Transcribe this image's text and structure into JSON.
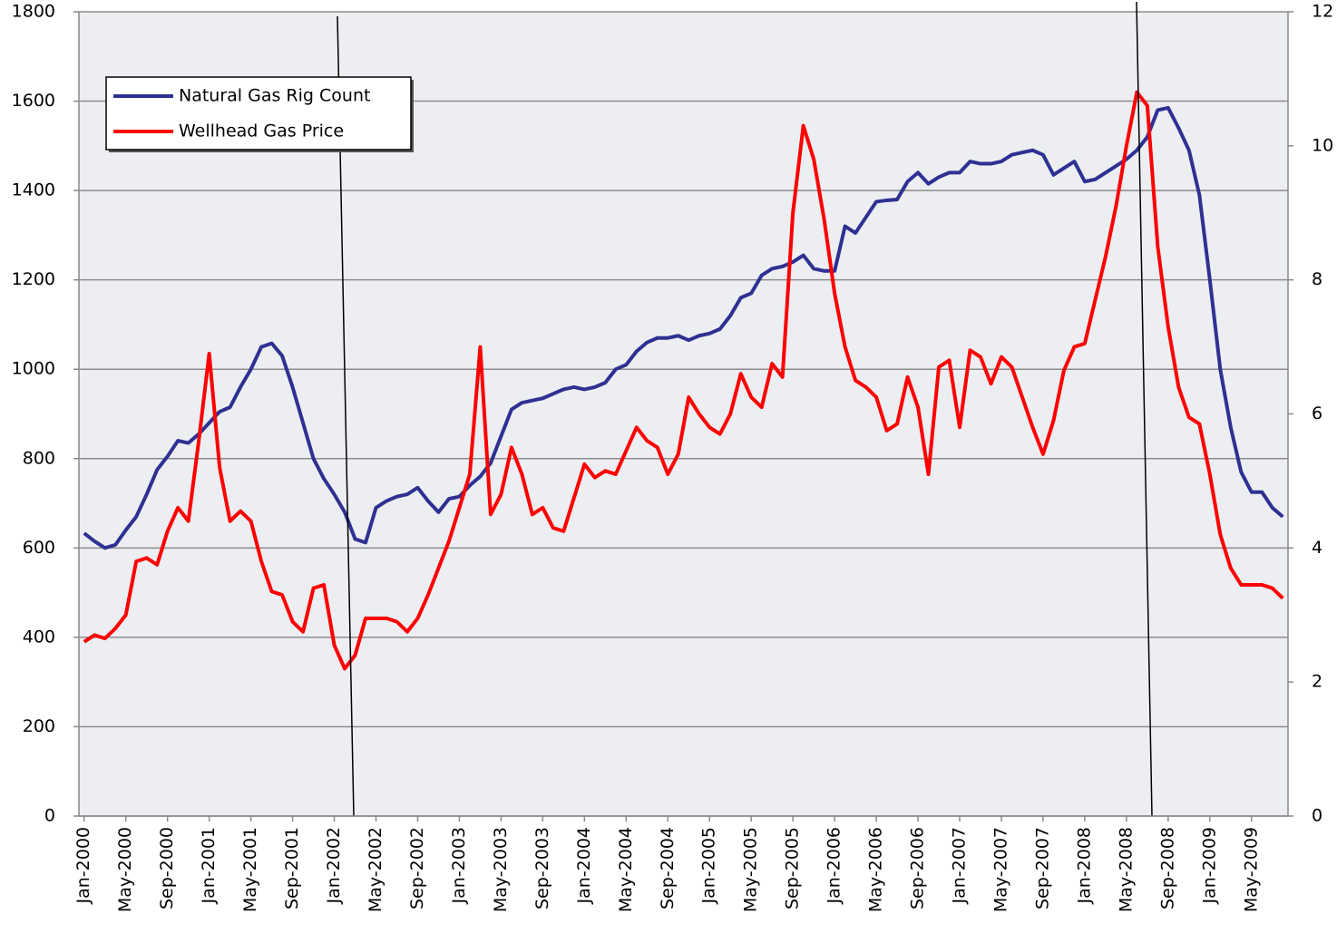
{
  "chart_data": {
    "type": "line",
    "categories": [
      "Jan-2000",
      null,
      null,
      null,
      "May-2000",
      null,
      null,
      null,
      "Sep-2000",
      null,
      null,
      null,
      "Jan-2001",
      null,
      null,
      null,
      "May-2001",
      null,
      null,
      null,
      "Sep-2001",
      null,
      null,
      null,
      "Jan-2002",
      null,
      null,
      null,
      "May-2002",
      null,
      null,
      null,
      "Sep-2002",
      null,
      null,
      null,
      "Jan-2003",
      null,
      null,
      null,
      "May-2003",
      null,
      null,
      null,
      "Sep-2003",
      null,
      null,
      null,
      "Jan-2004",
      null,
      null,
      null,
      "May-2004",
      null,
      null,
      null,
      "Sep-2004",
      null,
      null,
      null,
      "Jan-2005",
      null,
      null,
      null,
      "May-2005",
      null,
      null,
      null,
      "Sep-2005",
      null,
      null,
      null,
      "Jan-2006",
      null,
      null,
      null,
      "May-2006",
      null,
      null,
      null,
      "Sep-2006",
      null,
      null,
      null,
      "Jan-2007",
      null,
      null,
      null,
      "May-2007",
      null,
      null,
      null,
      "Sep-2007",
      null,
      null,
      null,
      "Jan-2008",
      null,
      null,
      null,
      "May-2008",
      null,
      null,
      null,
      "Sep-2008",
      null,
      null,
      null,
      "Jan-2009",
      null,
      null,
      null,
      "May-2009",
      null,
      null,
      null
    ],
    "series": [
      {
        "name": "Natural Gas Rig Count",
        "color": "#2e3192",
        "values": [
          633,
          615,
          600,
          607,
          640,
          670,
          720,
          775,
          805,
          840,
          835,
          855,
          880,
          905,
          915,
          960,
          1000,
          1050,
          1058,
          1030,
          960,
          880,
          800,
          755,
          720,
          680,
          620,
          612,
          690,
          705,
          715,
          720,
          735,
          705,
          680,
          710,
          715,
          740,
          760,
          790,
          850,
          910,
          925,
          930,
          935,
          945,
          955,
          960,
          955,
          960,
          970,
          1000,
          1010,
          1040,
          1060,
          1070,
          1070,
          1075,
          1065,
          1075,
          1080,
          1090,
          1120,
          1160,
          1170,
          1210,
          1225,
          1230,
          1240,
          1255,
          1225,
          1220,
          1220,
          1320,
          1305,
          1340,
          1375,
          1378,
          1380,
          1420,
          1440,
          1415,
          1430,
          1440,
          1440,
          1465,
          1460,
          1460,
          1465,
          1480,
          1485,
          1490,
          1480,
          1435,
          1450,
          1465,
          1420,
          1425,
          1440,
          1455,
          1470,
          1490,
          1520,
          1580,
          1585,
          1540,
          1490,
          1390,
          1200,
          1000,
          870,
          770,
          725,
          725,
          690,
          670
        ]
      },
      {
        "name": "Wellhead Gas Price",
        "color": "#ff0000",
        "axis": "y2",
        "values": [
          2.6,
          2.7,
          2.65,
          2.8,
          3.0,
          3.8,
          3.85,
          3.75,
          4.25,
          4.6,
          4.4,
          5.6,
          6.9,
          5.2,
          4.4,
          4.55,
          4.4,
          3.8,
          3.35,
          3.3,
          2.9,
          2.75,
          3.4,
          3.45,
          2.55,
          2.2,
          2.4,
          2.95,
          2.95,
          2.95,
          2.9,
          2.75,
          2.95,
          3.3,
          3.7,
          4.1,
          4.6,
          5.1,
          7.0,
          4.5,
          4.8,
          5.5,
          5.1,
          4.5,
          4.6,
          4.3,
          4.25,
          4.75,
          5.25,
          5.05,
          5.15,
          5.1,
          5.45,
          5.8,
          5.6,
          5.5,
          5.1,
          5.4,
          6.25,
          6.0,
          5.8,
          5.7,
          6.0,
          6.6,
          6.25,
          6.1,
          6.75,
          6.55,
          9.0,
          10.3,
          9.8,
          8.9,
          7.8,
          7.0,
          6.5,
          6.4,
          6.25,
          5.75,
          5.85,
          6.55,
          6.1,
          5.1,
          6.7,
          6.8,
          5.8,
          6.95,
          6.85,
          6.45,
          6.85,
          6.7,
          6.25,
          5.8,
          5.4,
          5.9,
          6.65,
          7.0,
          7.05,
          7.7,
          8.35,
          9.1,
          10.0,
          10.8,
          10.6,
          8.5,
          7.3,
          6.4,
          5.95,
          5.85,
          5.1,
          4.2,
          3.7,
          3.45,
          3.45,
          3.45,
          3.4,
          3.25
        ]
      }
    ],
    "ylim": [
      0,
      1800
    ],
    "yticks": [
      0,
      200,
      400,
      600,
      800,
      1000,
      1200,
      1400,
      1600,
      1800
    ],
    "y2lim": [
      0,
      12
    ],
    "y2ticks": [
      0,
      2,
      4,
      6,
      8,
      10,
      12
    ],
    "grid": true,
    "legend": "upper left"
  }
}
